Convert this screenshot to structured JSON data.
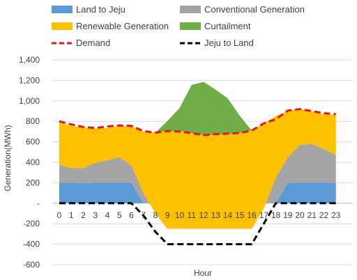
{
  "chart_data": {
    "type": "area",
    "title": "",
    "xlabel": "Hour",
    "ylabel": "Generation(MWh)",
    "ylim": [
      -600,
      1400
    ],
    "yticks": [
      -600,
      -400,
      -200,
      0,
      200,
      400,
      600,
      800,
      1000,
      1200,
      1400
    ],
    "ytick_labels": [
      "-600",
      "-400",
      "-200",
      "-",
      "200",
      "400",
      "600",
      "800",
      "1,000",
      "1,200",
      "1,400"
    ],
    "categories": [
      "0",
      "1",
      "2",
      "3",
      "4",
      "5",
      "6",
      "7",
      "8",
      "9",
      "10",
      "11",
      "12",
      "13",
      "14",
      "15",
      "16",
      "17",
      "18",
      "19",
      "20",
      "21",
      "22",
      "23"
    ],
    "grid": "horizontal",
    "legend_placement": "top",
    "stacking": "stacked-area",
    "series": [
      {
        "name": "Land to Jeju",
        "kind": "area",
        "color": "#5B9BD5",
        "values": [
          200,
          200,
          195,
          200,
          200,
          200,
          200,
          0,
          0,
          0,
          0,
          0,
          0,
          0,
          0,
          0,
          0,
          0,
          0,
          200,
          200,
          200,
          200,
          200
        ]
      },
      {
        "name": "Conventional Generation",
        "kind": "area",
        "color": "#A5A5A5",
        "values": [
          175,
          145,
          150,
          195,
          220,
          250,
          170,
          100,
          -100,
          -250,
          -250,
          -250,
          -250,
          -250,
          -250,
          -250,
          -250,
          -50,
          250,
          250,
          370,
          380,
          330,
          270
        ]
      },
      {
        "name": "Renewable Generation",
        "kind": "area",
        "color": "#FFC000",
        "values": [
          415,
          410,
          395,
          335,
          315,
          305,
          380,
          600,
          790,
          955,
          955,
          935,
          915,
          920,
          925,
          935,
          960,
          830,
          600,
          450,
          350,
          320,
          340,
          390
        ]
      },
      {
        "name": "Curtailment",
        "kind": "area",
        "color": "#70AD47",
        "values": [
          0,
          0,
          0,
          0,
          0,
          0,
          0,
          0,
          0,
          100,
          225,
          470,
          520,
          440,
          350,
          170,
          0,
          0,
          0,
          0,
          0,
          0,
          0,
          0
        ]
      },
      {
        "name": "Demand",
        "kind": "line",
        "color": "#E8161C",
        "dash": "dashed",
        "values": [
          800,
          770,
          745,
          735,
          750,
          760,
          755,
          705,
          690,
          705,
          700,
          685,
          665,
          675,
          680,
          685,
          710,
          780,
          820,
          905,
          920,
          900,
          880,
          870
        ]
      },
      {
        "name": "Jeju to Land",
        "kind": "line",
        "color": "#000000",
        "dash": "dashed",
        "values": [
          0,
          0,
          0,
          0,
          0,
          0,
          0,
          -120,
          -280,
          -400,
          -400,
          -400,
          -400,
          -400,
          -400,
          -400,
          -400,
          -200,
          0,
          0,
          0,
          0,
          0,
          0
        ]
      }
    ]
  }
}
